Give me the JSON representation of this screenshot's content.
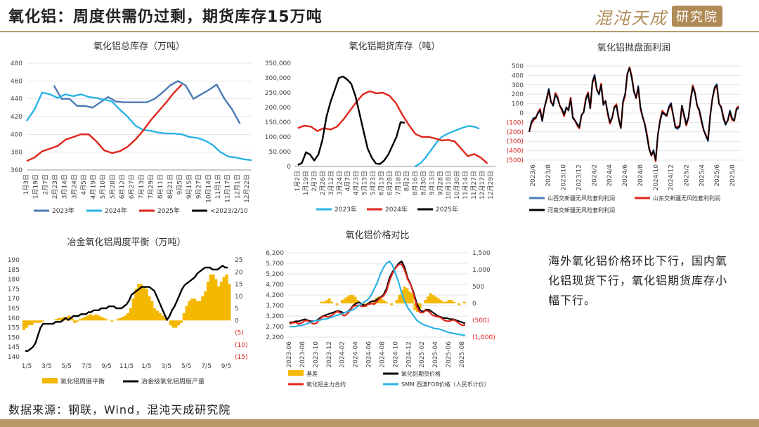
{
  "header": {
    "title": "氧化铝：周度供需仍过剩，期货库存15万吨"
  },
  "logo": {
    "main": "混沌天成",
    "boxed": "研究院"
  },
  "note": "海外氧化铝价格环比下行，国内氧化铝现货下行，氧化铝期货库存小幅下行。",
  "source": "数据来源：钢联，Wind，混沌天成研究院",
  "colors": {
    "blue": "#4a7ab5",
    "cyan": "#2bb3e6",
    "red": "#e0251b",
    "black": "#000000",
    "gold": "#f5b800",
    "accent": "#b89a6a"
  },
  "chart_data": [
    {
      "type": "line",
      "title": "氧化铝总库存（万吨）",
      "xlabels": [
        "1月3日",
        "1月19日",
        "2月7日",
        "2月23日",
        "3月14日",
        "3月24日",
        "4月5日",
        "4月19日",
        "5月10日",
        "5月28日",
        "6月12日",
        "6月27日",
        "7月13日",
        "7月29日",
        "8月11日",
        "8月21日",
        "9月5日",
        "9月15日",
        "9月27日",
        "10月14日",
        "11月1日",
        "11月17日",
        "12月1日",
        "12月22日"
      ],
      "ylim": [
        360,
        480
      ],
      "yticks": [
        360,
        380,
        400,
        420,
        440,
        460,
        480
      ],
      "series": [
        {
          "name": "2023年",
          "color": "#4a7ab5",
          "values": [
            null,
            null,
            455,
            440,
            440,
            432,
            432,
            430,
            436,
            442,
            437,
            436,
            436,
            436,
            436,
            440,
            447,
            455,
            460,
            455,
            440,
            445,
            450,
            456,
            440,
            428,
            412
          ],
          "x_start": 1.5
        },
        {
          "name": "2024年",
          "color": "#2bb3e6",
          "values": [
            415,
            428,
            447,
            445,
            441,
            445,
            443,
            445,
            442,
            441,
            439,
            437,
            428,
            420,
            410,
            405,
            404,
            402,
            401,
            401,
            400,
            397,
            396,
            393,
            388,
            380,
            375,
            374,
            372,
            371
          ]
        },
        {
          "name": "2025年",
          "color": "#e0251b",
          "values": [
            370,
            374,
            381,
            384,
            387,
            394,
            397,
            400,
            400,
            392,
            382,
            379,
            381,
            386,
            394,
            404,
            416,
            426,
            436,
            447,
            456
          ]
        },
        {
          "name": "<2023/2/10",
          "color": "#000000",
          "values": []
        }
      ]
    },
    {
      "type": "line",
      "title": "氧化铝期货库存（吨）",
      "xlabels": [
        "1月2日",
        "1月19日",
        "2月7日",
        "2月26日",
        "3月12日",
        "3月24日",
        "4月7日",
        "4月23日",
        "5月13日",
        "5月23日",
        "6月13日",
        "6月28日",
        "7月18日",
        "8月2日",
        "8月16日",
        "8月30日",
        "9月13日",
        "9月28日",
        "10月18日",
        "10月30日",
        "11月14日",
        "11月27日",
        "12月17日",
        "12月29日"
      ],
      "ylim": [
        0,
        350000
      ],
      "yticks": [
        "0",
        "50,000",
        "100,000",
        "150,000",
        "200,000",
        "250,000",
        "300,000",
        "350,000"
      ],
      "series": [
        {
          "name": "2023年",
          "color": "#2bb3e6",
          "values": [
            0,
            10000,
            30000,
            55000,
            80000,
            100000,
            110000,
            118000,
            125000,
            132000,
            137000,
            135000,
            128000
          ]
        },
        {
          "name": "2024年",
          "color": "#e0251b",
          "values": [
            130000,
            138000,
            135000,
            120000,
            130000,
            125000,
            135000,
            160000,
            190000,
            220000,
            245000,
            255000,
            248000,
            250000,
            240000,
            215000,
            175000,
            140000,
            110000,
            100000,
            100000,
            95000,
            88000,
            90000,
            85000,
            60000,
            35000,
            42000,
            30000,
            10000
          ]
        },
        {
          "name": "2025年",
          "color": "#000000",
          "values": [
            5000,
            12000,
            48000,
            40000,
            20000,
            40000,
            90000,
            170000,
            220000,
            260000,
            300000,
            305000,
            295000,
            280000,
            240000,
            180000,
            120000,
            60000,
            30000,
            10000,
            8000,
            20000,
            40000,
            70000,
            100000,
            150000,
            148000
          ]
        }
      ]
    },
    {
      "type": "line",
      "title": "氧化铝抛盘面利润",
      "xlabels": [
        "2023/6",
        "2023/8",
        "2023/10",
        "2023/12",
        "2024/2",
        "2024/4",
        "2024/6",
        "2024/8",
        "2024/10",
        "2024/12",
        "2025/2",
        "2025/4",
        "2025/6",
        "2025/8"
      ],
      "ylim": [
        -500,
        500
      ],
      "yticks": [
        "(500)",
        "(400)",
        "(300)",
        "(200)",
        "(100)",
        "0",
        "100",
        "200",
        "300",
        "400",
        "500"
      ],
      "series": [
        {
          "name": "山西交新疆无风险套利利润",
          "color": "#4a7ab5"
        },
        {
          "name": "山东交新疆无风险套利利润",
          "color": "#e0251b"
        },
        {
          "name": "河南交新疆无风险套利利润",
          "color": "#000000"
        }
      ],
      "profile": [
        -200,
        -100,
        -60,
        -50,
        0,
        30,
        -80,
        60,
        150,
        250,
        120,
        80,
        200,
        160,
        80,
        40,
        -20,
        60,
        30,
        150,
        -50,
        -80,
        -120,
        -150,
        -20,
        10,
        150,
        210,
        50,
        330,
        400,
        250,
        200,
        300,
        90,
        130,
        0,
        -100,
        -50,
        60,
        80,
        -60,
        -160,
        120,
        200,
        420,
        480,
        380,
        230,
        160,
        280,
        60,
        -40,
        -120,
        -240,
        -380,
        -450,
        -400,
        -500,
        -230,
        -80,
        10,
        -10,
        -30,
        60,
        100,
        -20,
        -150,
        -160,
        -140,
        80,
        -20,
        -120,
        -50,
        140,
        280,
        210,
        80,
        30,
        -80,
        -180,
        -240,
        -290,
        -30,
        160,
        270,
        300,
        100,
        60,
        -50,
        -120,
        -80,
        20,
        -60,
        -80,
        40,
        60
      ]
    },
    {
      "type": "bar",
      "title": "冶金氧化铝周度平衡（万吨）",
      "xlabels": [
        "1/5",
        "3/5",
        "5/5",
        "7/5",
        "9/5",
        "11/5",
        "1/5",
        "3/5",
        "5/5",
        "7/5",
        "9/5"
      ],
      "ylim": [
        140,
        190
      ],
      "yticks": [
        "140",
        "145",
        "150",
        "155",
        "160",
        "165",
        "170",
        "175",
        "180",
        "185",
        "190"
      ],
      "ylim2": [
        -15,
        25
      ],
      "yticks2": [
        "(15)",
        "(10)",
        "(5)",
        "0",
        "5",
        "10",
        "15",
        "20",
        "25"
      ],
      "series": [
        {
          "name": "氧化铝周度平衡",
          "color": "#f5b800",
          "type": "bar",
          "values": [
            -4,
            -3,
            -2,
            -2,
            -1,
            -1,
            -1,
            -0.5,
            0,
            0,
            0,
            0,
            0.5,
            1,
            1,
            1.5,
            1.5,
            2,
            1,
            -1,
            -0.5,
            0.5,
            1,
            1.5,
            2,
            2.5,
            2,
            2.5,
            2,
            1.5,
            1,
            0.5,
            0,
            -0.5,
            0,
            0.5,
            1,
            1.5,
            2,
            3,
            5,
            9,
            13,
            15,
            15,
            14,
            13,
            10,
            8,
            5,
            4,
            3,
            2,
            1,
            0,
            -2,
            -3,
            -3,
            -2,
            -1,
            3,
            6,
            8,
            9,
            9,
            8,
            8,
            10,
            12,
            16,
            19,
            19,
            17,
            14,
            16,
            18,
            19,
            15
          ]
        },
        {
          "name": "冶金级氧化铝周度产量",
          "color": "#000000",
          "type": "line",
          "values": [
            143,
            143,
            144,
            145,
            147,
            151,
            155,
            157,
            157,
            157,
            157,
            157,
            158,
            158,
            158,
            159,
            160,
            159,
            160,
            161,
            161,
            161,
            162,
            162,
            162,
            163,
            163,
            164,
            164,
            164,
            165,
            165,
            165,
            166,
            166,
            166,
            165,
            165,
            165,
            166,
            167,
            169,
            172,
            173,
            174,
            175,
            176,
            176,
            176,
            176,
            175,
            174,
            171,
            168,
            165,
            162,
            159,
            161,
            164,
            166,
            169,
            172,
            175,
            177,
            178,
            179,
            180,
            181,
            183,
            184,
            185,
            186,
            186,
            186,
            185,
            185,
            185,
            186,
            187,
            186,
            186
          ]
        }
      ]
    },
    {
      "type": "line",
      "title": "氧化铝价格对比",
      "xlabels": [
        "2023-06",
        "2023-08",
        "2023-10",
        "2023-12",
        "2024-02",
        "2024-04",
        "2024-06",
        "2024-08",
        "2024-10",
        "2024-12",
        "2025-02",
        "2025-04",
        "2025-06",
        "2025-08"
      ],
      "ylim": [
        2200,
        6200
      ],
      "yticks": [
        "2,200",
        "2,700",
        "3,200",
        "3,700",
        "4,200",
        "4,700",
        "5,200",
        "5,700",
        "6,200"
      ],
      "ylim2": [
        -1000,
        1500
      ],
      "yticks2": [
        "(1,000)",
        "(500)",
        "0",
        "500",
        "1,000",
        "1,500"
      ],
      "series": [
        {
          "name": "基差",
          "color": "#f5b800",
          "type": "bar"
        },
        {
          "name": "氧化铝期货价格",
          "color": "#000000"
        },
        {
          "name": "氧化铝主力合约",
          "color": "#e0251b"
        },
        {
          "name": "SMM 西澳FOB价格（人民币计价）",
          "color": "#2bb3e6"
        }
      ],
      "price": [
        2900,
        2900,
        2950,
        2950,
        3000,
        3050,
        3000,
        2950,
        2950,
        3000,
        3100,
        3200,
        3250,
        3300,
        3350,
        3400,
        3450,
        3400,
        3350,
        3400,
        3500,
        3700,
        3800,
        3850,
        3750,
        3700,
        3800,
        3900,
        3900,
        4000,
        4100,
        4200,
        4500,
        5000,
        5300,
        5500,
        5700,
        5800,
        5500,
        5000,
        4700,
        4300,
        3800,
        3500,
        3400,
        3500,
        3500,
        3400,
        3300,
        3200,
        3150,
        3100,
        3100,
        3050,
        3050,
        3000,
        2950,
        2900,
        2850
      ],
      "fob": [
        2700,
        2700,
        2700,
        2750,
        2750,
        2800,
        2850,
        2900,
        2950,
        3000,
        3000,
        3050,
        3050,
        3100,
        3150,
        3200,
        3250,
        3300,
        3350,
        3400,
        3450,
        3500,
        3600,
        3700,
        3800,
        3900,
        4000,
        4200,
        4500,
        4800,
        5200,
        5500,
        5700,
        5800,
        5600,
        5200,
        4800,
        4300,
        3900,
        3600,
        3400,
        3200,
        3000,
        2900,
        2800,
        2750,
        2700,
        2650,
        2600,
        2600,
        2550,
        2500,
        2450,
        2400,
        2380,
        2350,
        2330,
        2300,
        2280
      ],
      "basis": [
        0,
        0,
        50,
        50,
        100,
        150,
        50,
        0,
        -50,
        0,
        100,
        150,
        200,
        250,
        250,
        200,
        100,
        0,
        -50,
        -100,
        -50,
        0,
        100,
        150,
        200,
        150,
        100,
        50,
        0,
        -50,
        0,
        100,
        250,
        400,
        500,
        450,
        350,
        300,
        -200,
        -250,
        -150,
        0,
        100,
        200,
        300,
        250,
        200,
        150,
        100,
        50,
        50,
        100,
        100,
        50,
        0,
        -50,
        0,
        50,
        0
      ]
    }
  ]
}
